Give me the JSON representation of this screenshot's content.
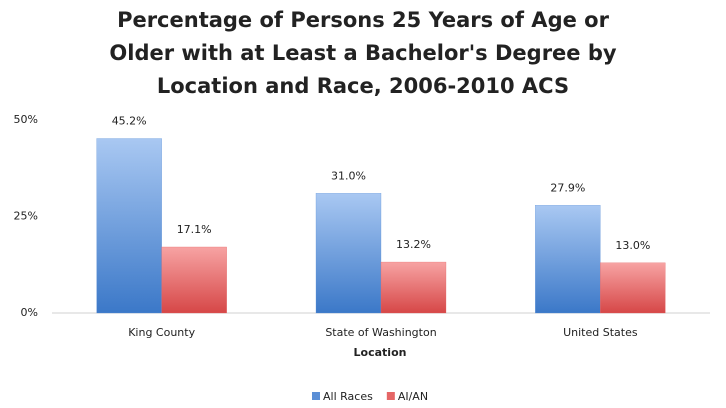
{
  "chart_data": {
    "type": "bar",
    "title": "Percentage of Persons 25 Years of Age or Older with at Least a Bachelor's Degree by Location and Race, 2006-2010 ACS",
    "x_label": "Location",
    "categories": [
      "King County",
      "State of Washington",
      "United States"
    ],
    "series": [
      {
        "name": "All Races",
        "color": "#5b8fd6",
        "values": [
          45.2,
          31.0,
          27.9
        ],
        "value_labels": [
          "45.2%",
          "31.0%",
          "27.9%"
        ]
      },
      {
        "name": "AI/AN",
        "color": "#e56666",
        "values": [
          17.1,
          13.2,
          13.0
        ],
        "value_labels": [
          "17.1%",
          "13.2%",
          "13.0%"
        ]
      }
    ],
    "ylim": [
      0,
      50
    ],
    "yticks": [
      {
        "value": 0,
        "label": "0%"
      },
      {
        "value": 25,
        "label": "25%"
      },
      {
        "value": 50,
        "label": "50%"
      }
    ],
    "legend": "bottom"
  }
}
